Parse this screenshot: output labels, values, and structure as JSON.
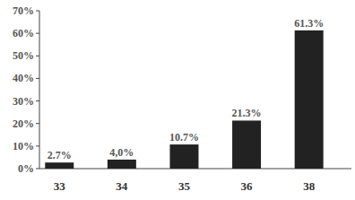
{
  "chart_data": {
    "type": "bar",
    "categories": [
      "33",
      "34",
      "35",
      "36",
      "38"
    ],
    "values": [
      2.7,
      4.0,
      10.7,
      21.3,
      61.3
    ],
    "value_labels": [
      "2.7%",
      "4,0%",
      "10.7%",
      "21.3%",
      "61.3%"
    ],
    "color": "#222222",
    "ylim": [
      0,
      70
    ],
    "yticks": [
      {
        "value": 0,
        "label": "0%"
      },
      {
        "value": 10,
        "label": "10%"
      },
      {
        "value": 20,
        "label": "20%"
      },
      {
        "value": 30,
        "label": "30%"
      },
      {
        "value": 40,
        "label": "40%"
      },
      {
        "value": 50,
        "label": "50%"
      },
      {
        "value": 60,
        "label": "60%"
      },
      {
        "value": 70,
        "label": "70%"
      }
    ],
    "grid": false,
    "data_labels": true
  }
}
